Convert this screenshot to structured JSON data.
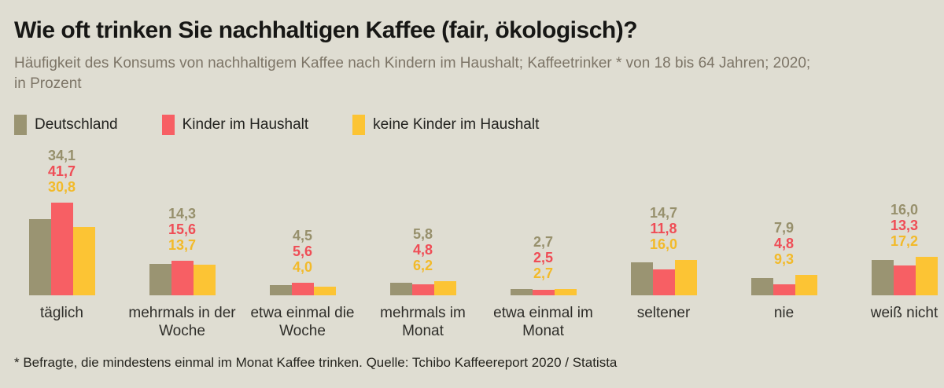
{
  "page": {
    "background_color": "#dfddd2"
  },
  "header": {
    "title": "Wie oft trinken Sie nachhaltigen Kaffee (fair, ökologisch)?",
    "subtitle_lines": [
      "Häufigkeit des Konsums von nachhaltigem Kaffee nach Kindern im Haushalt; Kaffeetrinker * von 18 bis 64 Jahren; 2020;",
      "in Prozent"
    ]
  },
  "chart_data": {
    "type": "bar",
    "title": "Wie oft trinken Sie nachhaltigen Kaffee (fair, ökologisch)?",
    "unit": "Prozent",
    "value_format": "decimal-comma-one-digit",
    "grid": false,
    "legend_position": "top-left",
    "ylim": [
      0,
      45
    ],
    "categories": [
      "täglich",
      "mehrmals in der Woche",
      "etwa einmal die Woche",
      "mehrmals im Monat",
      "etwa einmal im Monat",
      "seltener",
      "nie",
      "weiß nicht"
    ],
    "series": [
      {
        "name": "Deutschland",
        "color": "#9a9472",
        "label_color": "#97906c",
        "values": [
          34.1,
          14.3,
          4.5,
          5.8,
          2.7,
          14.7,
          7.9,
          16.0
        ]
      },
      {
        "name": "Kinder im Haushalt",
        "color": "#f75f64",
        "label_color": "#ef4d56",
        "values": [
          41.7,
          15.6,
          5.6,
          4.8,
          2.5,
          11.8,
          4.8,
          13.3
        ]
      },
      {
        "name": "keine Kinder im Haushalt",
        "color": "#fcc434",
        "label_color": "#f2ba2a",
        "values": [
          30.8,
          13.7,
          4.0,
          6.2,
          2.7,
          16.0,
          9.3,
          17.2
        ]
      }
    ]
  },
  "footnote": "* Befragte, die mindestens einmal im Monat Kaffee trinken. Quelle: Tchibo Kaffeereport 2020 / Statista"
}
